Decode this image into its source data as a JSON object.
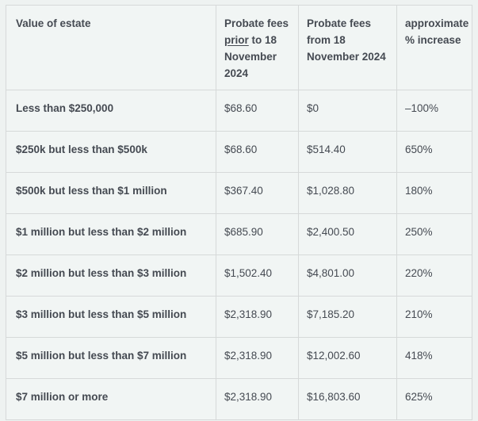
{
  "colors": {
    "page_bg": "#eef2f1",
    "cell_bg": "#f1f5f4",
    "border": "#d6d9d9",
    "text": "#454a52"
  },
  "table": {
    "headers": {
      "estate": "Value of estate",
      "fees_prior_line1": "Probate fees",
      "fees_prior_underlined": "prior",
      "fees_prior_rest": "to 18 November 2024",
      "fees_from": "Probate fees from 18 November 2024",
      "increase": "approximate % increase"
    },
    "rows": [
      {
        "estate": "Less than $250,000",
        "fee_prior": "$68.60",
        "fee_from": "$0",
        "increase": "–100%"
      },
      {
        "estate": "$250k but less than $500k",
        "fee_prior": "$68.60",
        "fee_from": "$514.40",
        "increase": "650%"
      },
      {
        "estate": "$500k but less than $1 million",
        "fee_prior": "$367.40",
        "fee_from": "$1,028.80",
        "increase": "180%"
      },
      {
        "estate": "$1 million but less than $2 million",
        "fee_prior": "$685.90",
        "fee_from": "$2,400.50",
        "increase": "250%"
      },
      {
        "estate": "$2 million but less than $3 million",
        "fee_prior": "$1,502.40",
        "fee_from": "$4,801.00",
        "increase": "220%"
      },
      {
        "estate": "$3 million but less than $5 million",
        "fee_prior": "$2,318.90",
        "fee_from": "$7,185.20",
        "increase": "210%"
      },
      {
        "estate": "$5 million but less than $7 million",
        "fee_prior": "$2,318.90",
        "fee_from": "$12,002.60",
        "increase": "418%"
      },
      {
        "estate": "$7 million or more",
        "fee_prior": "$2,318.90",
        "fee_from": "$16,803.60",
        "increase": "625%"
      }
    ]
  }
}
